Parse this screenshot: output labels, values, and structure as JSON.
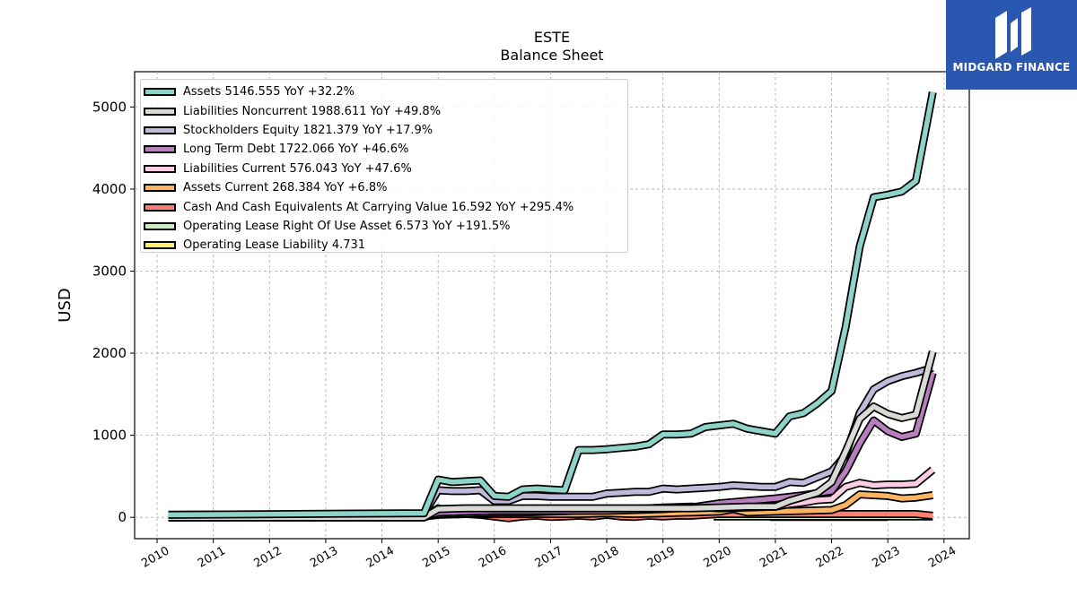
{
  "logo": {
    "text": "MIDGARD FINANCE"
  },
  "chart_data": {
    "type": "line",
    "title": "ESTE",
    "subtitle": "Balance  Sheet",
    "ylabel": "USD",
    "xlabel": "",
    "xlim": [
      2009.6,
      2024.45
    ],
    "ylim": [
      -260,
      5430
    ],
    "x_ticks": [
      2010,
      2011,
      2012,
      2013,
      2014,
      2015,
      2016,
      2017,
      2018,
      2019,
      2020,
      2021,
      2022,
      2023,
      2024
    ],
    "y_ticks": [
      0,
      1000,
      2000,
      3000,
      4000,
      5000
    ],
    "grid": true,
    "legend_position": "top-left",
    "series": [
      {
        "name": "Assets",
        "legend": "Assets  5146.555 YoY +32.2%",
        "color": "#8dd3c7",
        "x": [
          2010.2,
          2014.75,
          2015.0,
          2015.25,
          2015.5,
          2015.75,
          2016.0,
          2016.25,
          2016.5,
          2016.75,
          2017.0,
          2017.25,
          2017.5,
          2017.75,
          2018.0,
          2018.25,
          2018.5,
          2018.75,
          2019.0,
          2019.25,
          2019.5,
          2019.75,
          2020.0,
          2020.25,
          2020.5,
          2020.75,
          2021.0,
          2021.25,
          2021.5,
          2021.75,
          2022.0,
          2022.25,
          2022.5,
          2022.75,
          2023.0,
          2023.25,
          2023.5,
          2023.8
        ],
        "y": [
          30,
          50,
          460,
          430,
          440,
          450,
          260,
          250,
          340,
          350,
          340,
          330,
          820,
          820,
          830,
          845,
          860,
          890,
          1010,
          1010,
          1020,
          1100,
          1120,
          1140,
          1080,
          1050,
          1020,
          1230,
          1270,
          1390,
          1540,
          2320,
          3300,
          3900,
          3930,
          3970,
          4100,
          5180
        ]
      },
      {
        "name": "Liabilities Noncurrent",
        "legend": "Liabilities Noncurrent  1988.611 YoY +49.8%",
        "color": "#d9d9d6",
        "x": [
          2010.2,
          2014.75,
          2015.0,
          2015.5,
          2016.0,
          2016.5,
          2017.0,
          2017.5,
          2018.0,
          2018.5,
          2019.0,
          2019.5,
          2020.0,
          2020.5,
          2021.0,
          2021.25,
          2021.5,
          2021.75,
          2022.0,
          2022.25,
          2022.5,
          2022.75,
          2023.0,
          2023.25,
          2023.5,
          2023.8
        ],
        "y": [
          0,
          0,
          100,
          110,
          110,
          110,
          110,
          110,
          110,
          110,
          110,
          110,
          120,
          130,
          130,
          200,
          250,
          300,
          430,
          800,
          1200,
          1350,
          1260,
          1210,
          1250,
          2020
        ]
      },
      {
        "name": "Stockholders Equity",
        "legend": "Stockholders Equity  1821.379 YoY +17.9%",
        "color": "#bebada",
        "x": [
          2010.2,
          2014.75,
          2015.0,
          2015.25,
          2015.5,
          2015.75,
          2016.0,
          2016.25,
          2016.5,
          2016.75,
          2017.0,
          2017.25,
          2017.5,
          2017.75,
          2018.0,
          2018.25,
          2018.5,
          2018.75,
          2019.0,
          2019.25,
          2019.5,
          2019.75,
          2020.0,
          2020.25,
          2020.5,
          2020.75,
          2021.0,
          2021.25,
          2021.5,
          2021.75,
          2022.0,
          2022.25,
          2022.5,
          2022.75,
          2023.0,
          2023.25,
          2023.5,
          2023.8
        ],
        "y": [
          30,
          40,
          330,
          320,
          320,
          330,
          200,
          200,
          260,
          260,
          250,
          250,
          250,
          250,
          290,
          300,
          310,
          310,
          350,
          340,
          350,
          360,
          370,
          390,
          380,
          370,
          370,
          430,
          420,
          490,
          560,
          760,
          1270,
          1560,
          1660,
          1720,
          1760,
          1820
        ]
      },
      {
        "name": "Long Term Debt",
        "legend": "Long Term Debt  1722.066 YoY +46.6%",
        "color": "#b87fbf",
        "x": [
          2010.2,
          2014.75,
          2015.0,
          2015.5,
          2016.0,
          2016.5,
          2017.0,
          2017.5,
          2018.0,
          2018.5,
          2019.0,
          2019.5,
          2020.0,
          2020.5,
          2021.0,
          2021.5,
          2022.0,
          2022.25,
          2022.5,
          2022.75,
          2023.0,
          2023.25,
          2023.5,
          2023.8
        ],
        "y": [
          0,
          0,
          60,
          70,
          80,
          80,
          80,
          80,
          80,
          90,
          100,
          120,
          170,
          200,
          230,
          270,
          320,
          560,
          900,
          1180,
          1050,
          980,
          1020,
          1760
        ]
      },
      {
        "name": "Liabilities Current",
        "legend": "Liabilities Current  576.043 YoY +47.6%",
        "color": "#fccde5",
        "x": [
          2010.2,
          2014.75,
          2015.0,
          2015.5,
          2016.0,
          2016.5,
          2017.0,
          2017.5,
          2018.0,
          2018.5,
          2019.0,
          2019.5,
          2020.0,
          2020.5,
          2021.0,
          2021.25,
          2021.5,
          2021.75,
          2022.0,
          2022.25,
          2022.5,
          2022.75,
          2023.0,
          2023.25,
          2023.5,
          2023.8
        ],
        "y": [
          0,
          10,
          40,
          50,
          60,
          60,
          70,
          80,
          90,
          100,
          120,
          130,
          110,
          120,
          130,
          160,
          180,
          210,
          220,
          370,
          420,
          390,
          400,
          400,
          410,
          580
        ]
      },
      {
        "name": "Assets Current",
        "legend": "Assets Current  268.384 YoY +6.8%",
        "color": "#fdb462",
        "x": [
          2010.2,
          2014.75,
          2015.0,
          2015.5,
          2016.0,
          2016.5,
          2017.0,
          2017.5,
          2018.0,
          2018.5,
          2019.0,
          2019.5,
          2020.0,
          2020.25,
          2020.5,
          2021.0,
          2021.5,
          2022.0,
          2022.25,
          2022.5,
          2022.75,
          2023.0,
          2023.25,
          2023.5,
          2023.8
        ],
        "y": [
          0,
          10,
          30,
          40,
          40,
          40,
          40,
          40,
          50,
          40,
          50,
          60,
          70,
          100,
          60,
          70,
          80,
          90,
          150,
          280,
          270,
          260,
          230,
          240,
          270
        ]
      },
      {
        "name": "Cash And Cash Equivalents At Carrying Value",
        "legend": "Cash And Cash Equivalents At Carrying Value  16.592 YoY +295.4%",
        "color": "#fb8072",
        "x": [
          2010.2,
          2014.75,
          2015.0,
          2015.25,
          2015.5,
          2015.75,
          2016.0,
          2016.25,
          2016.5,
          2016.75,
          2017.0,
          2017.25,
          2017.5,
          2017.75,
          2018.0,
          2018.25,
          2018.5,
          2018.75,
          2019.0,
          2019.25,
          2019.5,
          2019.75,
          2020.0,
          2020.5,
          2021.0,
          2021.5,
          2022.0,
          2022.5,
          2023.0,
          2023.5,
          2023.8
        ],
        "y": [
          0,
          0,
          110,
          50,
          40,
          30,
          10,
          -10,
          10,
          20,
          5,
          10,
          20,
          10,
          30,
          10,
          5,
          20,
          10,
          20,
          20,
          30,
          40,
          40,
          40,
          40,
          40,
          40,
          40,
          40,
          20
        ]
      },
      {
        "name": "Operating Lease Right Of Use Asset",
        "legend": "Operating Lease Right Of Use Asset  6.573 YoY +191.5%",
        "color": "#ccebc5",
        "x": [
          2019.9,
          2020.9,
          2023.0,
          2023.8
        ],
        "y": [
          10,
          10,
          10,
          10
        ]
      },
      {
        "name": "Operating Lease Liability",
        "legend": "Operating Lease Liability  4.731",
        "color": "#ffed6f",
        "x": [
          2020.9,
          2023.0
        ],
        "y": [
          5,
          5
        ]
      }
    ]
  }
}
